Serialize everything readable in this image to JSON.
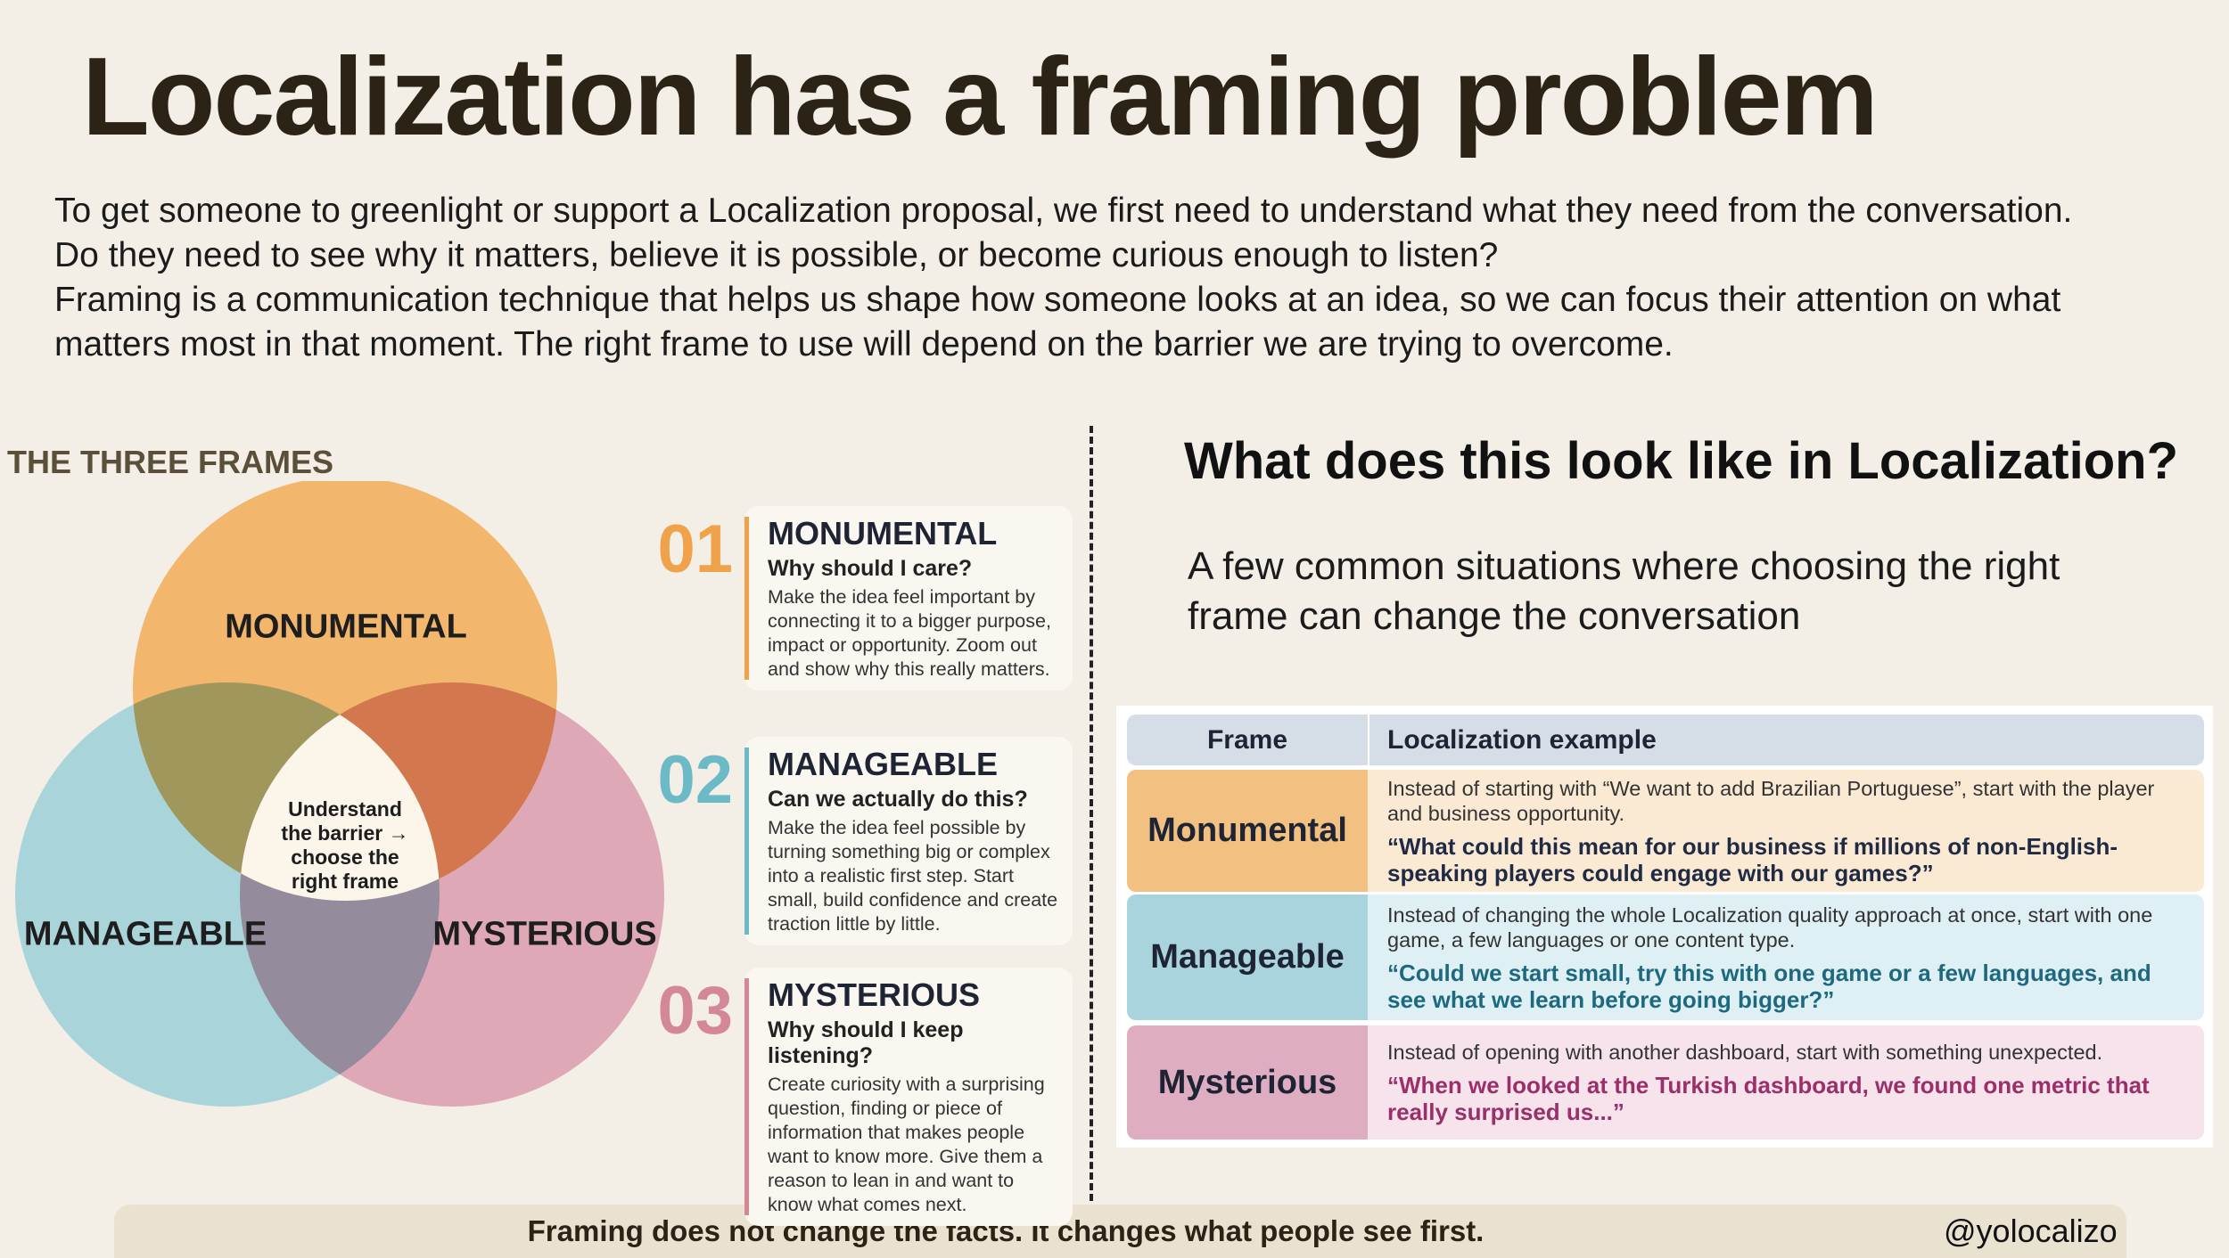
{
  "title": "Localization has a framing problem",
  "intro": [
    "To get someone to greenlight or support a Localization proposal, we first need to understand what they need from the conversation.",
    "Do they need to see why it matters, believe it is possible, or become curious enough to listen?",
    "Framing is a communication technique that helps us shape how someone looks at an idea, so we can focus their attention on what",
    "matters most in that moment. The right frame to use will depend on the barrier we are trying to overcome."
  ],
  "frames": {
    "heading": "THE THREE FRAMES",
    "venn": {
      "top": "MONUMENTAL",
      "left": "MANAGEABLE",
      "right": "MYSTERIOUS",
      "center": "Understand the barrier → choose the right frame"
    },
    "cards": [
      {
        "number": "01",
        "title": "MONUMENTAL",
        "question": "Why should I care?",
        "description": "Make the idea feel important by connecting it to a bigger purpose, impact or opportunity. Zoom out and show why this really matters."
      },
      {
        "number": "02",
        "title": "MANAGEABLE",
        "question": "Can we actually do this?",
        "description": "Make the idea feel possible by turning something big or complex into a realistic first step. Start small, build confidence and create traction little by little."
      },
      {
        "number": "03",
        "title": "MYSTERIOUS",
        "question": "Why should I keep listening?",
        "description": "Create curiosity with a surprising question, finding or piece of information that makes people want to know more. Give them a reason to lean in and want to know what comes next."
      }
    ]
  },
  "examples": {
    "heading": "What does this look like in Localization?",
    "subtitle": "A few common situations where choosing the right frame can change the conversation",
    "table": {
      "headers": [
        "Frame",
        "Localization example"
      ],
      "rows": [
        {
          "frame": "Monumental",
          "situation": "Instead of starting with “We want to add Brazilian Portuguese”, start with the player and business opportunity.",
          "quote": "“What could this mean for our business if millions of non-English-speaking players could engage with our games?”"
        },
        {
          "frame": "Manageable",
          "situation": "Instead of changing the whole Localization quality approach at once, start with one game, a few languages or one content type.",
          "quote": "“Could we start small, try this with one game or a few languages, and see what we learn before going bigger?”"
        },
        {
          "frame": "Mysterious",
          "situation": "Instead of opening with another dashboard, start with something unexpected.",
          "quote": "“When we looked at the Turkish dashboard, we found one metric that really surprised us...”"
        }
      ]
    }
  },
  "footer": {
    "text": "Framing does not change the facts. It changes what people see first.",
    "handle": "@yolocalizo"
  }
}
